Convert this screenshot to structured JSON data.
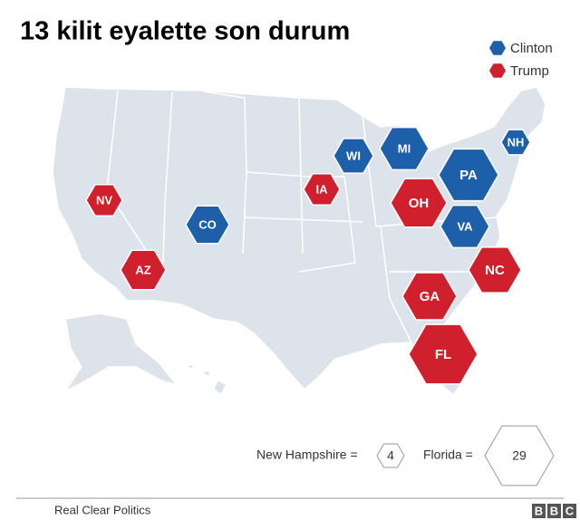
{
  "title": "13 kilit eyalette son durum",
  "legend": [
    {
      "name": "Clinton",
      "color": "#1d5fa8"
    },
    {
      "name": "Trump",
      "color": "#d0202e"
    }
  ],
  "states": [
    {
      "label": "WI",
      "party": 0
    },
    {
      "label": "MI",
      "party": 0
    },
    {
      "label": "NH",
      "party": 0
    },
    {
      "label": "PA",
      "party": 0
    },
    {
      "label": "IA",
      "party": 1
    },
    {
      "label": "NV",
      "party": 1
    },
    {
      "label": "OH",
      "party": 1
    },
    {
      "label": "CO",
      "party": 0
    },
    {
      "label": "VA",
      "party": 0
    },
    {
      "label": "AZ",
      "party": 1
    },
    {
      "label": "NC",
      "party": 1
    },
    {
      "label": "GA",
      "party": 1
    },
    {
      "label": "FL",
      "party": 1
    }
  ],
  "size_key": [
    {
      "label": "New Hampshire =",
      "value": 4
    },
    {
      "label": "Florida =",
      "value": 29
    }
  ],
  "source": "Real Clear Politics",
  "logo": [
    "B",
    "B",
    "C"
  ]
}
